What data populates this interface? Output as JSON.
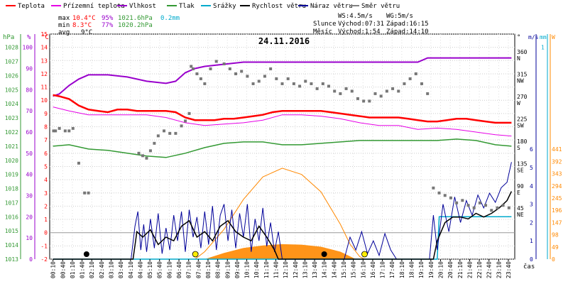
{
  "chart_data": {
    "type": "line",
    "title": "24.11.2016",
    "xlabel": "čas",
    "x_ticks": [
      "00:10",
      "00:40",
      "01:10",
      "01:40",
      "02:10",
      "02:40",
      "03:10",
      "03:40",
      "04:10",
      "04:40",
      "05:10",
      "05:40",
      "06:10",
      "06:40",
      "07:10",
      "07:40",
      "08:10",
      "08:40",
      "09:10",
      "09:40",
      "10:10",
      "10:40",
      "11:10",
      "11:40",
      "12:10",
      "12:40",
      "13:10",
      "13:40",
      "14:10",
      "14:40",
      "15:10",
      "15:40",
      "16:10",
      "16:40",
      "17:10",
      "17:40",
      "18:10",
      "18:40",
      "19:10",
      "19:40",
      "20:10",
      "20:40",
      "21:10",
      "21:40",
      "22:10",
      "22:40",
      "23:10",
      "23:40"
    ],
    "legend": [
      {
        "name": "Teplota",
        "color": "#ff0000"
      },
      {
        "name": "Pŕízemní teplota",
        "color": "#e600e6"
      },
      {
        "name": "Vlhkost",
        "color": "#9900cc"
      },
      {
        "name": "Tlak",
        "color": "#339933"
      },
      {
        "name": "Srážky",
        "color": "#00aacc"
      },
      {
        "name": "Rychlost větru",
        "color": "#000000"
      },
      {
        "name": "Náraz větru",
        "color": "#000099"
      },
      {
        "name": "Směr větru",
        "color": "#808080"
      }
    ],
    "stats": {
      "max_label": "max",
      "max_temp": "10.4°C",
      "max_hum": "95%",
      "max_press": "1021.6hPa",
      "rain": "0.2mm",
      "min_label": "min",
      "min_temp": "8.3°C",
      "min_hum": "77%",
      "min_press": "1020.2hPa",
      "avg_label": "avg",
      "avg_temp": "9°C"
    },
    "info": {
      "ws": "WS:4.5m/s",
      "wg": "WG:5m/s",
      "sun_label": "Slunce",
      "sunrise": "Východ:07:31",
      "sunset": "Západ:16:15",
      "moon_label": "Měsíc",
      "moonrise": "Východ:1:54",
      "moonset": "Západ:14:10"
    },
    "axes": {
      "hpa": {
        "label": "hPa",
        "ticks": [
          "1028",
          "1027",
          "1026",
          "1025",
          "1024",
          "1023",
          "1022",
          "1021",
          "1020",
          "1019",
          "1018",
          "1017",
          "1016",
          "1015",
          "1014",
          "1013"
        ],
        "color": "#339933"
      },
      "pct": {
        "label": "%",
        "ticks": [
          "100",
          "90",
          "80",
          "70",
          "60",
          "50",
          "40",
          "30",
          "20",
          "10",
          "0"
        ],
        "color": "#9900cc"
      },
      "degc": {
        "label": "°C",
        "ticks": [
          "15",
          "14",
          "13",
          "12",
          "11",
          "10",
          "9",
          "8",
          "7",
          "6",
          "5",
          "4",
          "3",
          "2",
          "1",
          "0",
          "-1",
          "-2"
        ],
        "color": "#ff0000"
      },
      "dir": {
        "label": "°",
        "ticks": [
          {
            "v": "360",
            "d": "N"
          },
          {
            "v": "315",
            "d": "NW"
          },
          {
            "v": "270",
            "d": "W"
          },
          {
            "v": "225",
            "d": "SW"
          },
          {
            "v": "180",
            "d": "S"
          },
          {
            "v": "135",
            "d": "SE"
          },
          {
            "v": "90",
            "d": "E"
          },
          {
            "v": "45",
            "d": "NE"
          }
        ],
        "color": "#000000"
      },
      "ms": {
        "label": "m/s",
        "ticks": [
          "6",
          "5",
          "4",
          "3",
          "2",
          "1",
          "0"
        ],
        "color": "#000099"
      },
      "mm": {
        "label": "mm",
        "ticks": [
          "1"
        ],
        "color": "#00aacc"
      },
      "w": {
        "label": "W",
        "ticks": [
          "441",
          "392",
          "343",
          "294",
          "245",
          "196",
          "147",
          "98",
          "49",
          "0"
        ],
        "color": "#ff8800"
      }
    },
    "ylim_temp": [
      -2,
      15
    ],
    "ylim_wind": [
      0,
      6
    ],
    "ylim_solar": [
      0,
      441
    ],
    "series": {
      "temperature": {
        "x": [
          0.17,
          0.5,
          1,
          1.5,
          2,
          2.5,
          3,
          3.5,
          4,
          4.5,
          5,
          5.5,
          6,
          6.5,
          7,
          7.5,
          8,
          8.5,
          9,
          9.5,
          10,
          10.5,
          11,
          11.5,
          12,
          12.5,
          13,
          13.5,
          14,
          14.5,
          15,
          15.5,
          16,
          16.5,
          17,
          17.5,
          18,
          18.5,
          19,
          19.5,
          20,
          20.5,
          21,
          21.5,
          22,
          22.5,
          23,
          23.5,
          23.83
        ],
        "values": [
          10.4,
          10.3,
          10.1,
          9.6,
          9.3,
          9.2,
          9.1,
          9.3,
          9.3,
          9.2,
          9.2,
          9.2,
          9.2,
          9.1,
          8.7,
          8.5,
          8.5,
          8.5,
          8.6,
          8.6,
          8.7,
          8.8,
          8.9,
          9.1,
          9.2,
          9.2,
          9.2,
          9.2,
          9.2,
          9.1,
          9.0,
          8.9,
          8.8,
          8.7,
          8.7,
          8.7,
          8.7,
          8.6,
          8.5,
          8.4,
          8.4,
          8.5,
          8.6,
          8.6,
          8.5,
          8.4,
          8.3,
          8.3,
          8.3
        ]
      },
      "ground_temp": {
        "x": [
          0.17,
          1,
          2,
          3,
          4,
          5,
          6,
          7,
          8,
          9,
          10,
          11,
          12,
          13,
          14,
          15,
          16,
          17,
          18,
          19,
          20,
          21,
          22,
          23,
          23.83
        ],
        "values": [
          9.5,
          9.2,
          8.9,
          8.9,
          8.9,
          8.9,
          8.7,
          8.3,
          8.1,
          8.2,
          8.3,
          8.5,
          8.9,
          8.9,
          8.8,
          8.6,
          8.3,
          8.1,
          8.1,
          7.8,
          7.9,
          7.8,
          7.6,
          7.4,
          7.3
        ]
      },
      "humidity": {
        "x": [
          0.17,
          0.5,
          1,
          1.5,
          2,
          3,
          4,
          5,
          6,
          6.5,
          7,
          7.5,
          8,
          9,
          10,
          11,
          12,
          13,
          14,
          15,
          16,
          17,
          18,
          19,
          19.5,
          20,
          21,
          22,
          23,
          23.83
        ],
        "values": [
          77,
          78,
          82,
          85,
          87,
          87,
          86,
          84,
          83,
          84,
          88,
          90,
          91,
          92,
          93,
          93,
          93,
          93,
          93,
          93,
          93,
          93,
          93,
          93,
          95,
          95,
          95,
          95,
          95,
          95
        ]
      },
      "pressure": {
        "x": [
          0.17,
          1,
          2,
          3,
          4,
          5,
          6,
          7,
          8,
          9,
          10,
          11,
          12,
          13,
          14,
          15,
          16,
          17,
          18,
          19,
          20,
          21,
          22,
          23,
          23.83
        ],
        "values": [
          1021.0,
          1021.1,
          1020.8,
          1020.7,
          1020.5,
          1020.3,
          1020.2,
          1020.5,
          1020.9,
          1021.2,
          1021.3,
          1021.3,
          1021.1,
          1021.1,
          1021.2,
          1021.3,
          1021.4,
          1021.4,
          1021.4,
          1021.4,
          1021.4,
          1021.5,
          1021.4,
          1021.1,
          1021.0
        ]
      },
      "wind_speed": {
        "x": [
          0.17,
          4.3,
          4.5,
          4.8,
          5.2,
          5.6,
          6,
          6.4,
          6.8,
          7.2,
          7.6,
          8,
          8.4,
          8.8,
          9.2,
          9.6,
          10,
          10.4,
          10.8,
          11.2,
          11.6,
          11.8,
          19.8,
          20,
          20.4,
          20.8,
          21.2,
          21.6,
          22,
          22.4,
          22.8,
          23.2,
          23.6,
          23.83
        ],
        "values": [
          0,
          0,
          1.5,
          1.2,
          1.6,
          0.8,
          1.2,
          1.0,
          1.8,
          2.1,
          1.2,
          1.5,
          1.0,
          1.8,
          2.1,
          1.5,
          1.2,
          1.0,
          1.8,
          1.2,
          0.5,
          0,
          0,
          1.0,
          2.0,
          2.3,
          2.3,
          2.2,
          2.5,
          2.3,
          2.5,
          2.8,
          3.2,
          3.7
        ]
      },
      "wind_gust": {
        "x": [
          0.17,
          4.2,
          4.4,
          4.55,
          4.7,
          4.85,
          5.0,
          5.2,
          5.4,
          5.6,
          5.8,
          6.0,
          6.2,
          6.4,
          6.6,
          6.8,
          7.0,
          7.2,
          7.4,
          7.6,
          7.8,
          8.0,
          8.2,
          8.4,
          8.6,
          8.8,
          9.0,
          9.2,
          9.4,
          9.6,
          9.8,
          10.0,
          10.2,
          10.4,
          10.6,
          10.8,
          11.0,
          11.2,
          11.4,
          11.6,
          11.8,
          12.0,
          12.3,
          15.2,
          15.5,
          15.8,
          16.1,
          16.4,
          16.7,
          17.0,
          17.3,
          17.6,
          17.9,
          19.6,
          19.8,
          20.0,
          20.3,
          20.6,
          20.9,
          21.2,
          21.5,
          21.8,
          22.1,
          22.4,
          22.7,
          23.0,
          23.3,
          23.6,
          23.83
        ],
        "values": [
          0,
          0,
          1.8,
          2.6,
          0.5,
          1.9,
          0.4,
          2.2,
          0.6,
          2.5,
          0.3,
          1.7,
          0.5,
          2.4,
          1.0,
          2.6,
          0.4,
          2.7,
          1.2,
          2.3,
          0.6,
          2.6,
          0.8,
          2.9,
          0.5,
          2.4,
          3.0,
          1.0,
          2.7,
          0.6,
          2.5,
          1.2,
          3.0,
          0.4,
          2.2,
          1.0,
          2.8,
          0.7,
          2.0,
          0.4,
          1.5,
          0,
          0,
          0,
          1.2,
          0.5,
          1.5,
          0.3,
          1.0,
          0.2,
          1.4,
          0.5,
          0,
          0,
          2.4,
          0.5,
          3.0,
          1.5,
          3.4,
          2.0,
          3.2,
          2.4,
          3.5,
          2.8,
          3.6,
          3.1,
          3.9,
          4.2,
          5.3
        ]
      },
      "solar": {
        "x": [
          7.5,
          8,
          9,
          10,
          11,
          12,
          13,
          14,
          15,
          15.5,
          16,
          16.25
        ],
        "values": [
          0,
          30,
          120,
          240,
          330,
          365,
          340,
          270,
          140,
          60,
          10,
          0
        ]
      },
      "solar_measured": {
        "x": [
          8.0,
          9.0,
          10.0,
          11.0,
          12.0,
          13.0,
          14.0,
          15.0,
          15.8
        ],
        "values": [
          0,
          25,
          45,
          55,
          60,
          58,
          50,
          30,
          0
        ]
      },
      "rain": {
        "x": [
          0.17,
          20.0,
          20.1,
          23.83
        ],
        "values": [
          0,
          0,
          0.2,
          0.2
        ]
      },
      "wind_dir": {
        "x": [
          0.2,
          0.3,
          0.5,
          0.8,
          1.0,
          1.2,
          1.5,
          1.8,
          2.0,
          4.6,
          4.8,
          5.0,
          5.2,
          5.4,
          5.6,
          5.9,
          6.2,
          6.5,
          6.8,
          7.0,
          7.2,
          7.3,
          7.4,
          7.6,
          7.8,
          8.0,
          8.3,
          8.6,
          9.0,
          9.3,
          9.6,
          9.9,
          10.2,
          10.5,
          10.8,
          11.1,
          11.4,
          11.7,
          12.0,
          12.3,
          12.6,
          12.9,
          13.2,
          13.5,
          13.8,
          14.1,
          14.4,
          14.7,
          15.0,
          15.3,
          15.6,
          15.9,
          16.2,
          16.5,
          16.8,
          17.1,
          17.4,
          17.7,
          18.0,
          18.3,
          18.6,
          18.9,
          19.2,
          19.5,
          19.8,
          20.1,
          20.4,
          20.7,
          21.0,
          21.3,
          21.6,
          21.9,
          22.2,
          22.5,
          22.8,
          23.1,
          23.4,
          23.7
        ],
        "values": [
          205,
          205,
          210,
          205,
          205,
          210,
          140,
          80,
          80,
          160,
          155,
          150,
          165,
          180,
          195,
          205,
          200,
          200,
          215,
          225,
          240,
          335,
          330,
          320,
          310,
          300,
          330,
          345,
          340,
          330,
          320,
          325,
          315,
          300,
          305,
          315,
          330,
          310,
          300,
          310,
          300,
          295,
          305,
          300,
          290,
          300,
          295,
          285,
          280,
          290,
          285,
          270,
          265,
          265,
          280,
          275,
          285,
          290,
          285,
          300,
          310,
          320,
          300,
          280,
          90,
          80,
          75,
          70,
          60,
          65,
          55,
          50,
          60,
          55,
          45,
          50,
          55,
          50
        ]
      }
    }
  }
}
